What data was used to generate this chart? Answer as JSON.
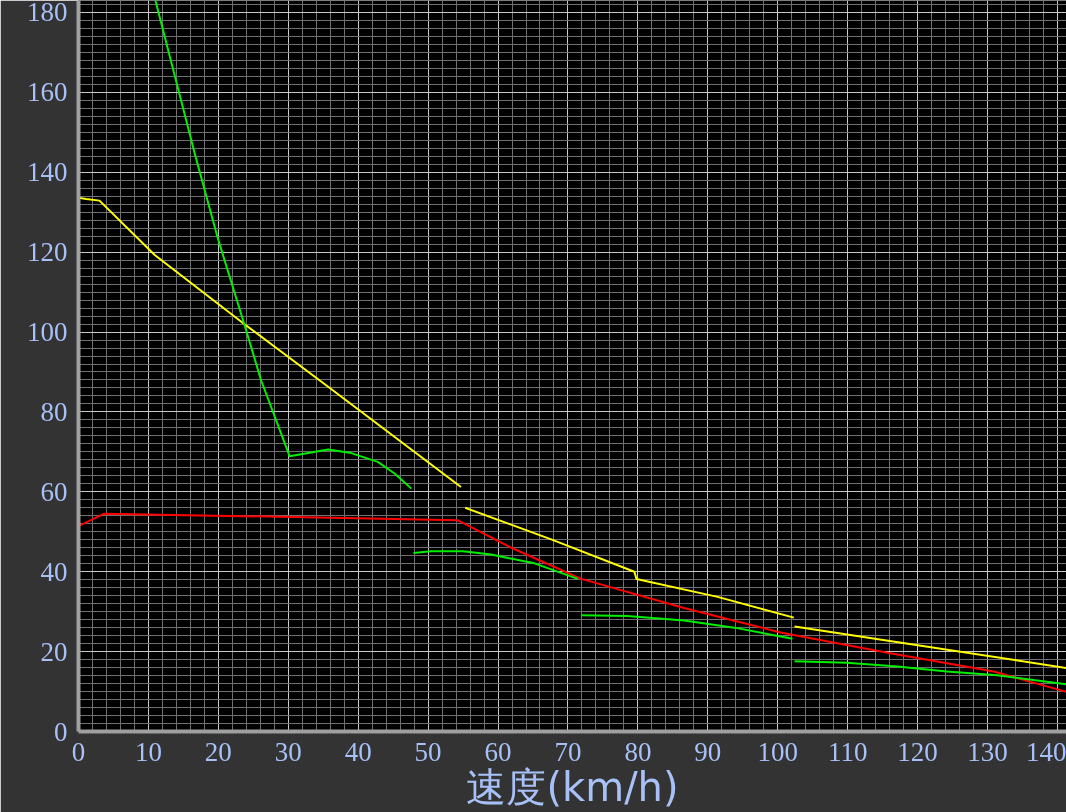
{
  "chart_data": {
    "type": "line",
    "xlabel": "速度(km/h)",
    "xlim": [
      0,
      141.3
    ],
    "ylim": [
      0,
      183
    ],
    "xticks": [
      0,
      {
        "value": 2,
        "label": null
      },
      {
        "value": 4,
        "label": null
      },
      {
        "value": 6,
        "label": null
      },
      {
        "value": 8,
        "label": null
      },
      10,
      {
        "value": 12,
        "label": null
      },
      {
        "value": 14,
        "label": null
      },
      {
        "value": 16,
        "label": null
      },
      {
        "value": 18,
        "label": null
      },
      20,
      {
        "value": 22,
        "label": null
      },
      {
        "value": 24,
        "label": null
      },
      {
        "value": 26,
        "label": null
      },
      {
        "value": 28,
        "label": null
      },
      30,
      {
        "value": 32,
        "label": null
      },
      {
        "value": 34,
        "label": null
      },
      {
        "value": 36,
        "label": null
      },
      {
        "value": 38,
        "label": null
      },
      40,
      {
        "value": 42,
        "label": null
      },
      {
        "value": 44,
        "label": null
      },
      {
        "value": 46,
        "label": null
      },
      {
        "value": 48,
        "label": null
      },
      50,
      {
        "value": 52,
        "label": null
      },
      {
        "value": 54,
        "label": null
      },
      {
        "value": 56,
        "label": null
      },
      {
        "value": 58,
        "label": null
      },
      60,
      {
        "value": 62,
        "label": null
      },
      {
        "value": 64,
        "label": null
      },
      {
        "value": 66,
        "label": null
      },
      {
        "value": 68,
        "label": null
      },
      70,
      {
        "value": 72,
        "label": null
      },
      {
        "value": 74,
        "label": null
      },
      {
        "value": 76,
        "label": null
      },
      {
        "value": 78,
        "label": null
      },
      80,
      {
        "value": 82,
        "label": null
      },
      {
        "value": 84,
        "label": null
      },
      {
        "value": 86,
        "label": null
      },
      {
        "value": 88,
        "label": null
      },
      90,
      {
        "value": 92,
        "label": null
      },
      {
        "value": 94,
        "label": null
      },
      {
        "value": 96,
        "label": null
      },
      {
        "value": 98,
        "label": null
      },
      100,
      {
        "value": 102,
        "label": null
      },
      {
        "value": 104,
        "label": null
      },
      {
        "value": 106,
        "label": null
      },
      {
        "value": 108,
        "label": null
      },
      110,
      {
        "value": 112,
        "label": null
      },
      {
        "value": 114,
        "label": null
      },
      {
        "value": 116,
        "label": null
      },
      {
        "value": 118,
        "label": null
      },
      120,
      {
        "value": 122,
        "label": null
      },
      {
        "value": 124,
        "label": null
      },
      {
        "value": 126,
        "label": null
      },
      {
        "value": 128,
        "label": null
      },
      130,
      {
        "value": 132,
        "label": null
      },
      {
        "value": 134,
        "label": null
      },
      {
        "value": 136,
        "label": null
      },
      {
        "value": 138,
        "label": null
      },
      140
    ],
    "yticks": [
      0,
      {
        "value": 2,
        "label": null
      },
      {
        "value": 4,
        "label": null
      },
      {
        "value": 6,
        "label": null
      },
      {
        "value": 8,
        "label": null
      },
      {
        "value": 10,
        "label": null
      },
      {
        "value": 12,
        "label": null
      },
      {
        "value": 14,
        "label": null
      },
      {
        "value": 16,
        "label": null
      },
      {
        "value": 18,
        "label": null
      },
      20,
      {
        "value": 22,
        "label": null
      },
      {
        "value": 24,
        "label": null
      },
      {
        "value": 26,
        "label": null
      },
      {
        "value": 28,
        "label": null
      },
      {
        "value": 30,
        "label": null
      },
      {
        "value": 32,
        "label": null
      },
      {
        "value": 34,
        "label": null
      },
      {
        "value": 36,
        "label": null
      },
      {
        "value": 38,
        "label": null
      },
      40,
      {
        "value": 42,
        "label": null
      },
      {
        "value": 44,
        "label": null
      },
      {
        "value": 46,
        "label": null
      },
      {
        "value": 48,
        "label": null
      },
      {
        "value": 50,
        "label": null
      },
      {
        "value": 52,
        "label": null
      },
      {
        "value": 54,
        "label": null
      },
      {
        "value": 56,
        "label": null
      },
      {
        "value": 58,
        "label": null
      },
      60,
      {
        "value": 62,
        "label": null
      },
      {
        "value": 64,
        "label": null
      },
      {
        "value": 66,
        "label": null
      },
      {
        "value": 68,
        "label": null
      },
      {
        "value": 70,
        "label": null
      },
      {
        "value": 72,
        "label": null
      },
      {
        "value": 74,
        "label": null
      },
      {
        "value": 76,
        "label": null
      },
      {
        "value": 78,
        "label": null
      },
      80,
      {
        "value": 82,
        "label": null
      },
      {
        "value": 84,
        "label": null
      },
      {
        "value": 86,
        "label": null
      },
      {
        "value": 88,
        "label": null
      },
      {
        "value": 90,
        "label": null
      },
      {
        "value": 92,
        "label": null
      },
      {
        "value": 94,
        "label": null
      },
      {
        "value": 96,
        "label": null
      },
      {
        "value": 98,
        "label": null
      },
      100,
      {
        "value": 102,
        "label": null
      },
      {
        "value": 104,
        "label": null
      },
      {
        "value": 106,
        "label": null
      },
      {
        "value": 108,
        "label": null
      },
      {
        "value": 110,
        "label": null
      },
      {
        "value": 112,
        "label": null
      },
      {
        "value": 114,
        "label": null
      },
      {
        "value": 116,
        "label": null
      },
      {
        "value": 118,
        "label": null
      },
      120,
      {
        "value": 122,
        "label": null
      },
      {
        "value": 124,
        "label": null
      },
      {
        "value": 126,
        "label": null
      },
      {
        "value": 128,
        "label": null
      },
      {
        "value": 130,
        "label": null
      },
      {
        "value": 132,
        "label": null
      },
      {
        "value": 134,
        "label": null
      },
      {
        "value": 136,
        "label": null
      },
      {
        "value": 138,
        "label": null
      },
      140,
      {
        "value": 142,
        "label": null
      },
      {
        "value": 144,
        "label": null
      },
      {
        "value": 146,
        "label": null
      },
      {
        "value": 148,
        "label": null
      },
      {
        "value": 150,
        "label": null
      },
      {
        "value": 152,
        "label": null
      },
      {
        "value": 154,
        "label": null
      },
      {
        "value": 156,
        "label": null
      },
      {
        "value": 158,
        "label": null
      },
      160,
      {
        "value": 162,
        "label": null
      },
      {
        "value": 164,
        "label": null
      },
      {
        "value": 166,
        "label": null
      },
      {
        "value": 168,
        "label": null
      },
      {
        "value": 170,
        "label": null
      },
      {
        "value": 172,
        "label": null
      },
      {
        "value": 174,
        "label": null
      },
      {
        "value": 176,
        "label": null
      },
      {
        "value": 178,
        "label": null
      },
      180,
      {
        "value": 182,
        "label": null
      }
    ],
    "grid": true,
    "series": [
      {
        "color": "#ffff00",
        "x": [
          0,
          1.1,
          3.0,
          10.9,
          23.7,
          35.7,
          54.7
        ],
        "values": [
          133.6,
          133.3,
          132.9,
          119.3,
          102,
          86.3,
          61.2
        ]
      },
      {
        "color": "#ffff00",
        "x": [
          55.3,
          67.6,
          79.5,
          79.8,
          91.4,
          102.3
        ],
        "values": [
          56.0,
          48.1,
          40.0,
          38.2,
          33.7,
          28.5
        ]
      },
      {
        "color": "#ffff00",
        "x": [
          102.4,
          141.3
        ],
        "values": [
          26.3,
          15.9
        ]
      },
      {
        "color": "#ff0000",
        "x": [
          0,
          3.6,
          27.1,
          54.2,
          61.9,
          71.9,
          86.6,
          100.4,
          115.7,
          130.9,
          141.3
        ],
        "values": [
          51.4,
          54.5,
          53.8,
          52.9,
          46.0,
          38.2,
          30.9,
          24.8,
          19.7,
          15.0,
          9.9
        ]
      },
      {
        "color": "#00ee00",
        "x": [
          11,
          16.6,
          19.9,
          23.7,
          26.1,
          30.2,
          35.7,
          39,
          42.8,
          45.2,
          47.6
        ],
        "values": [
          183,
          144.8,
          123.6,
          102,
          88,
          68.9,
          70.6,
          69.7,
          67.5,
          64.6,
          60.8
        ]
      },
      {
        "color": "#00ee00",
        "x": [
          47.9,
          50.4,
          55,
          59,
          65.2,
          71.4
        ],
        "values": [
          44.7,
          45.1,
          45.1,
          44.3,
          42.1,
          38.2
        ]
      },
      {
        "color": "#00ee00",
        "x": [
          71.9,
          78.5,
          86.6,
          93.8,
          102.1
        ],
        "values": [
          29.1,
          28.9,
          27.8,
          26.0,
          23.2
        ]
      },
      {
        "color": "#00ee00",
        "x": [
          102.4,
          109.9,
          117.1,
          124.2,
          131.4,
          141.3
        ],
        "values": [
          17.6,
          17.2,
          16.3,
          15.0,
          14.1,
          11.8
        ]
      }
    ]
  }
}
